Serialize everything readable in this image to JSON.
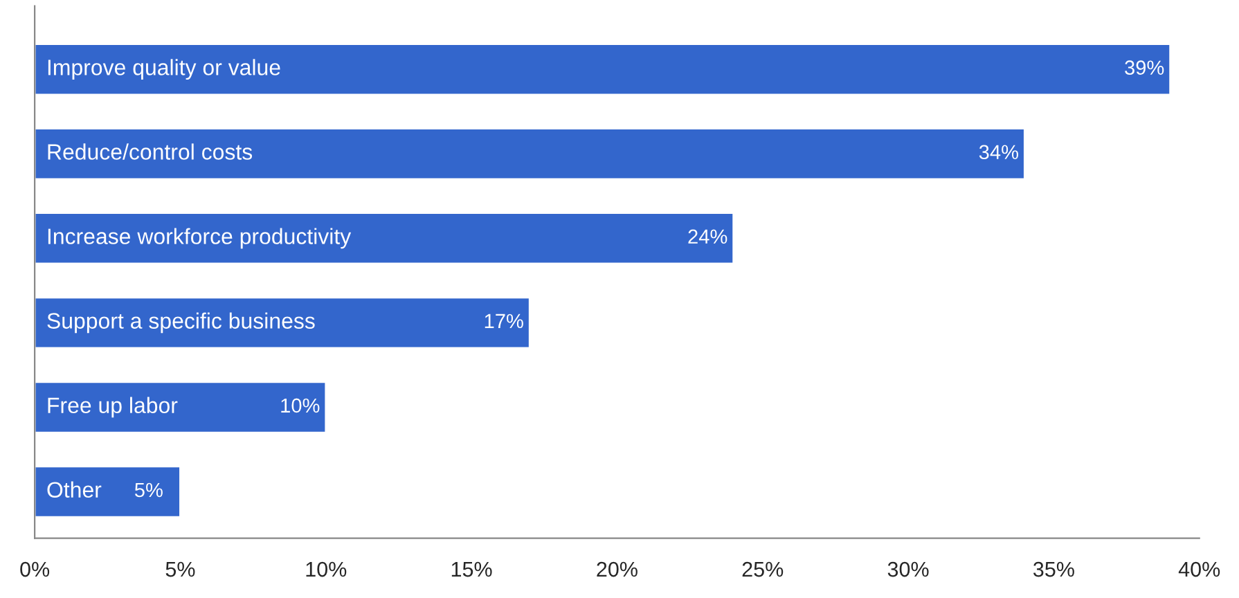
{
  "chart_data": {
    "type": "bar",
    "orientation": "horizontal",
    "categories": [
      "Improve quality or value",
      "Reduce/control costs",
      "Increase workforce productivity",
      "Support a specific business",
      "Free up labor",
      "Other"
    ],
    "values": [
      39,
      34,
      24,
      17,
      10,
      5
    ],
    "color": "#3366cc",
    "data_labels": true,
    "value_labels": [
      "39%",
      "34%",
      "24%",
      "17%",
      "10%",
      "5%"
    ],
    "xlim": [
      0,
      40
    ],
    "xticks": [
      {
        "value": 0,
        "label": "0%"
      },
      {
        "value": 5,
        "label": "5%"
      },
      {
        "value": 10,
        "label": "10%"
      },
      {
        "value": 15,
        "label": "15%"
      },
      {
        "value": 20,
        "label": "20%"
      },
      {
        "value": 25,
        "label": "25%"
      },
      {
        "value": 30,
        "label": "30%"
      },
      {
        "value": 35,
        "label": "35%"
      },
      {
        "value": 40,
        "label": "40%"
      }
    ],
    "grid": false
  }
}
